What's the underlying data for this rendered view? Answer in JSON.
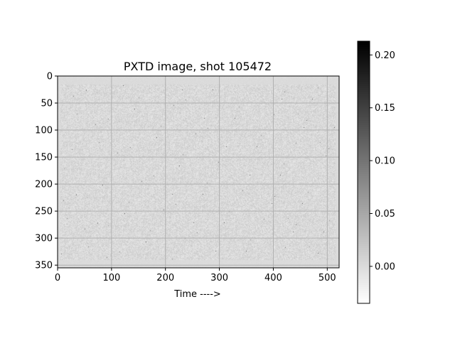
{
  "chart_data": {
    "type": "heatmap",
    "title": "PXTD image, shot 105472",
    "xlabel": "Time ---->",
    "ylabel": "",
    "x_ticks": [
      0,
      100,
      200,
      300,
      400,
      500
    ],
    "y_ticks": [
      0,
      50,
      100,
      150,
      200,
      250,
      300,
      350
    ],
    "xlim": [
      0,
      522
    ],
    "ylim": [
      355,
      0
    ],
    "grid": true,
    "image_extent": {
      "x": [
        0,
        522
      ],
      "y": [
        0,
        355
      ]
    },
    "active_region": {
      "x": [
        5,
        515
      ],
      "y": [
        15,
        340
      ]
    },
    "colormap": "gray_r",
    "colorbar": {
      "vmin": -0.035,
      "vmax": 0.213,
      "ticks": [
        0.0,
        0.05,
        0.1,
        0.15,
        0.2
      ],
      "tick_labels": [
        "0.00",
        "0.05",
        "0.10",
        "0.15",
        "0.20"
      ]
    },
    "background_value": 0.0,
    "colors": {
      "axis": "#000000",
      "grid": "#b0b0b0",
      "background": "#ffffff"
    }
  }
}
